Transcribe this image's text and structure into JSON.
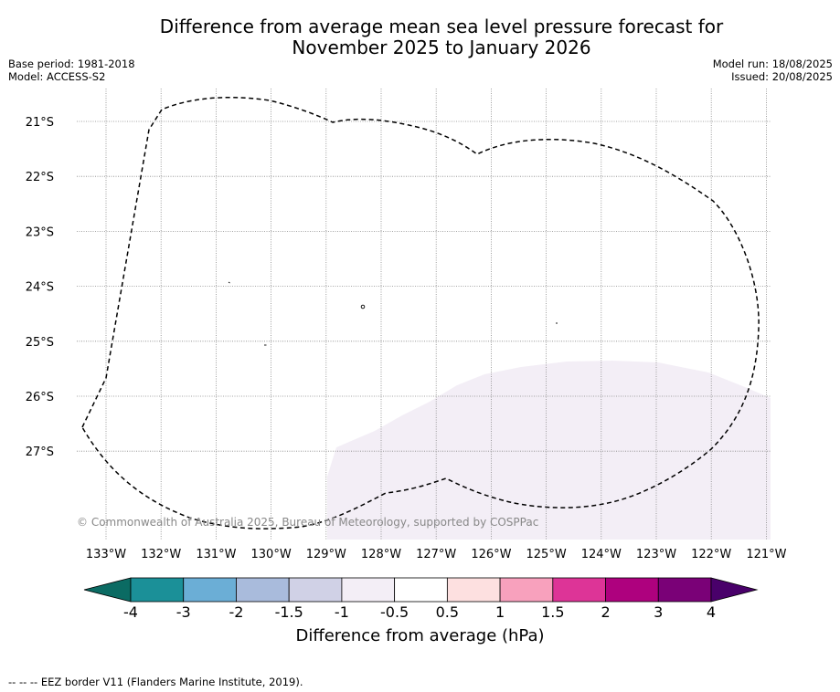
{
  "title_line1": "Difference from average mean sea level pressure forecast for",
  "title_line2": "November 2025 to January 2026",
  "base_period": "Base period: 1981-2018",
  "model": "Model: ACCESS-S2",
  "model_run": "Model run: 18/08/2025",
  "issued": "Issued: 20/08/2025",
  "copyright": "© Commonwealth of Australia 2025, Bureau of Meteorology, supported by COSPPac",
  "footer_legend": "--  --  -- EEZ border V11 (Flanders Marine Institute, 2019).",
  "map": {
    "lon_labels": [
      "133°W",
      "132°W",
      "131°W",
      "130°W",
      "129°W",
      "128°W",
      "127°W",
      "126°W",
      "125°W",
      "124°W",
      "123°W",
      "122°W",
      "121°W"
    ],
    "lat_labels": [
      "21°S",
      "22°S",
      "23°S",
      "24°S",
      "25°S",
      "26°S",
      "27°S"
    ],
    "lon_range": [
      -133.5,
      -121.1
    ],
    "lat_range": [
      -28.6,
      -20.4
    ]
  },
  "colorbar": {
    "title": "Difference from average (hPa)",
    "tick_labels": [
      "-4",
      "-3",
      "-2",
      "-1.5",
      "-1",
      "-0.5",
      "0.5",
      "1",
      "1.5",
      "2",
      "3",
      "4"
    ],
    "colors": {
      "under": "#0b6b63",
      "bins": [
        "#1b9098",
        "#6baed6",
        "#a9bbdc",
        "#d0d1e6",
        "#f3eef6",
        "#ffffff",
        "#fde0e0",
        "#f8a1bd",
        "#dd3497",
        "#ae017e",
        "#7a0177"
      ],
      "over": "#49006a"
    }
  }
}
